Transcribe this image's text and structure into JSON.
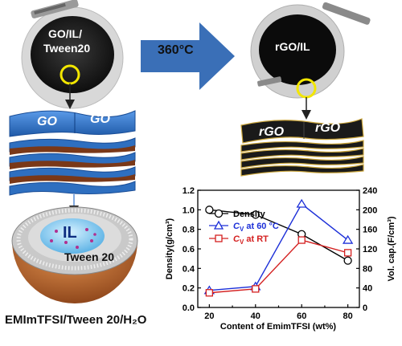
{
  "left": {
    "photo_label_line1": "GO/IL/",
    "photo_label_line2": "Tween20",
    "sheet_label_1": "GO",
    "sheet_label_2": "GO",
    "micelle_core_label": "IL",
    "micelle_shell_label": "Tween 20",
    "bottom_caption": "EMImTFSI/Tween 20/H₂O"
  },
  "arrow": {
    "label": "360°C",
    "color": "#3a6fb7"
  },
  "right": {
    "photo_label": "rGO/IL",
    "sheet_label_1": "rGO",
    "sheet_label_2": "rGO"
  },
  "colors": {
    "go_sheet": "#2e6fc0",
    "rgo_sheet": "#1a1a1a",
    "rgo_edge": "#c9a43a",
    "micelle_shell": "#b8652a",
    "micelle_core": "#9ed8f0",
    "highlight_circle": "#f2e600",
    "density_series": "#000000",
    "cv60_series": "#1c2fd8",
    "cvrt_series": "#d42020"
  },
  "chart_data": {
    "type": "line",
    "xlabel": "Content of EmimTFSI (wt%)",
    "ylabel_left": "Density(g/cm³)",
    "ylabel_right": "Vol. cap.(F/cm³)",
    "x": [
      20,
      40,
      60,
      80
    ],
    "x_ticks": [
      20,
      30,
      40,
      50,
      60,
      70,
      80
    ],
    "xlim": [
      15,
      85
    ],
    "ylim_left": [
      0.0,
      1.2
    ],
    "yticks_left": [
      "0.0",
      "0.2",
      "0.4",
      "0.6",
      "0.8",
      "1.0",
      "1.2"
    ],
    "ylim_right": [
      0,
      240
    ],
    "yticks_right": [
      "0",
      "40",
      "80",
      "120",
      "160",
      "200",
      "240"
    ],
    "legend_position": "top-right",
    "series": [
      {
        "name": "Density",
        "axis": "left",
        "marker": "circle",
        "values": [
          1.0,
          0.95,
          0.75,
          0.48
        ]
      },
      {
        "name": "C_V at 60 °C",
        "name_prefix": "C",
        "name_sub": "V",
        "name_suffix": " at 60 °C",
        "axis": "right",
        "marker": "triangle",
        "values": [
          35,
          43,
          212,
          138
        ]
      },
      {
        "name": "C_V at RT",
        "name_prefix": "C",
        "name_sub": "V",
        "name_suffix": " at RT",
        "axis": "right",
        "marker": "square",
        "values": [
          30,
          38,
          138,
          112
        ]
      }
    ]
  }
}
